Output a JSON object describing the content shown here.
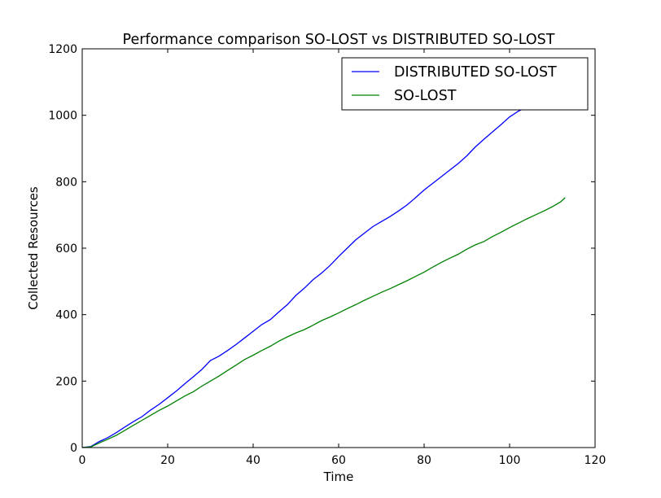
{
  "chart_data": {
    "type": "line",
    "title": "Performance comparison SO-LOST vs DISTRIBUTED SO-LOST",
    "xlabel": "Time",
    "ylabel": "Collected Resources",
    "xlim": [
      0,
      120
    ],
    "ylim": [
      0,
      1200
    ],
    "xticks": [
      0,
      20,
      40,
      60,
      80,
      100,
      120
    ],
    "yticks": [
      0,
      200,
      400,
      600,
      800,
      1000,
      1200
    ],
    "grid": false,
    "legend": "top-right",
    "series": [
      {
        "name": "DISTRIBUTED SO-LOST",
        "color": "#0000ff",
        "x": [
          0,
          2,
          4,
          6,
          8,
          10,
          12,
          14,
          16,
          18,
          20,
          22,
          24,
          26,
          28,
          30,
          32,
          34,
          36,
          38,
          40,
          42,
          44,
          46,
          48,
          50,
          52,
          54,
          56,
          58,
          60,
          62,
          64,
          66,
          68,
          70,
          72,
          74,
          76,
          78,
          80,
          82,
          84,
          86,
          88,
          90,
          92,
          94,
          96,
          98,
          100,
          102,
          104
        ],
        "y": [
          0,
          3,
          18,
          30,
          45,
          62,
          78,
          93,
          113,
          130,
          150,
          170,
          192,
          213,
          235,
          262,
          275,
          292,
          310,
          330,
          350,
          370,
          385,
          408,
          430,
          458,
          480,
          505,
          525,
          548,
          575,
          600,
          625,
          645,
          665,
          680,
          695,
          712,
          730,
          752,
          775,
          795,
          815,
          835,
          855,
          878,
          905,
          928,
          950,
          972,
          995,
          1012,
          1025
        ]
      },
      {
        "name": "SO-LOST",
        "color": "#008000",
        "x": [
          0,
          2,
          4,
          6,
          8,
          10,
          12,
          14,
          16,
          18,
          20,
          22,
          24,
          26,
          28,
          30,
          32,
          34,
          36,
          38,
          40,
          42,
          44,
          46,
          48,
          50,
          52,
          54,
          56,
          58,
          60,
          62,
          64,
          66,
          68,
          70,
          72,
          74,
          76,
          78,
          80,
          82,
          84,
          86,
          88,
          90,
          92,
          94,
          96,
          98,
          100,
          102,
          104,
          106,
          108,
          110,
          112,
          113
        ],
        "y": [
          0,
          2,
          14,
          25,
          37,
          52,
          67,
          82,
          97,
          112,
          125,
          140,
          155,
          168,
          185,
          200,
          215,
          232,
          248,
          265,
          278,
          292,
          305,
          320,
          333,
          345,
          355,
          368,
          382,
          393,
          405,
          418,
          430,
          443,
          455,
          467,
          478,
          490,
          502,
          515,
          528,
          543,
          557,
          570,
          582,
          597,
          610,
          620,
          635,
          648,
          662,
          675,
          688,
          700,
          712,
          725,
          740,
          752
        ]
      }
    ]
  }
}
